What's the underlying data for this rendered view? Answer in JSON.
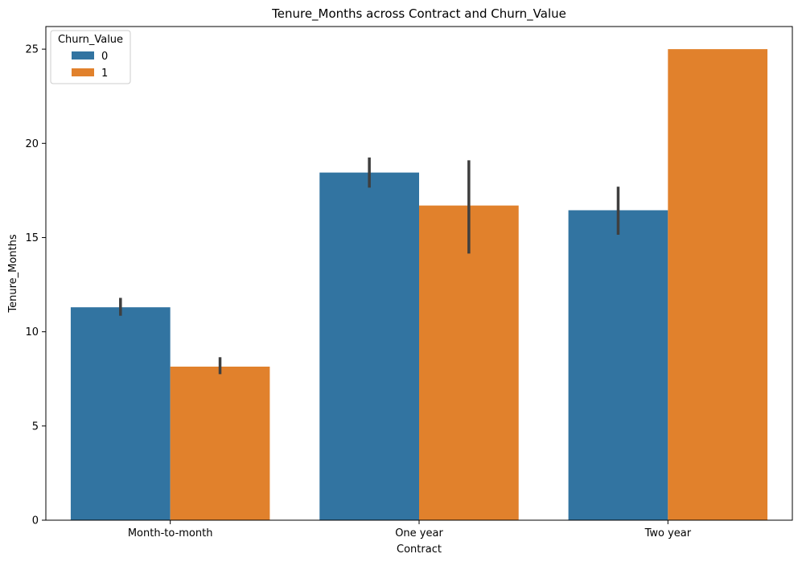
{
  "chart_data": {
    "type": "bar",
    "title": "Tenure_Months across Contract and Churn_Value",
    "xlabel": "Contract",
    "ylabel": "Tenure_Months",
    "categories": [
      "Month-to-month",
      "One year",
      "Two year"
    ],
    "ylim": [
      0,
      26.2
    ],
    "yticks": [
      0,
      5,
      10,
      15,
      20,
      25
    ],
    "grid": false,
    "legend": {
      "title": "Churn_Value",
      "placement": "top-left"
    },
    "series": [
      {
        "name": "0",
        "color": "#3274a1",
        "values": [
          11.3,
          18.45,
          16.45
        ],
        "error_low": [
          10.85,
          17.65,
          15.15
        ],
        "error_high": [
          11.8,
          19.25,
          17.7
        ]
      },
      {
        "name": "1",
        "color": "#e1812c",
        "values": [
          8.15,
          16.7,
          25.0
        ],
        "error_low": [
          7.75,
          14.15,
          null
        ],
        "error_high": [
          8.65,
          19.1,
          null
        ]
      }
    ],
    "errorbar_color": "#3f3f3f"
  }
}
